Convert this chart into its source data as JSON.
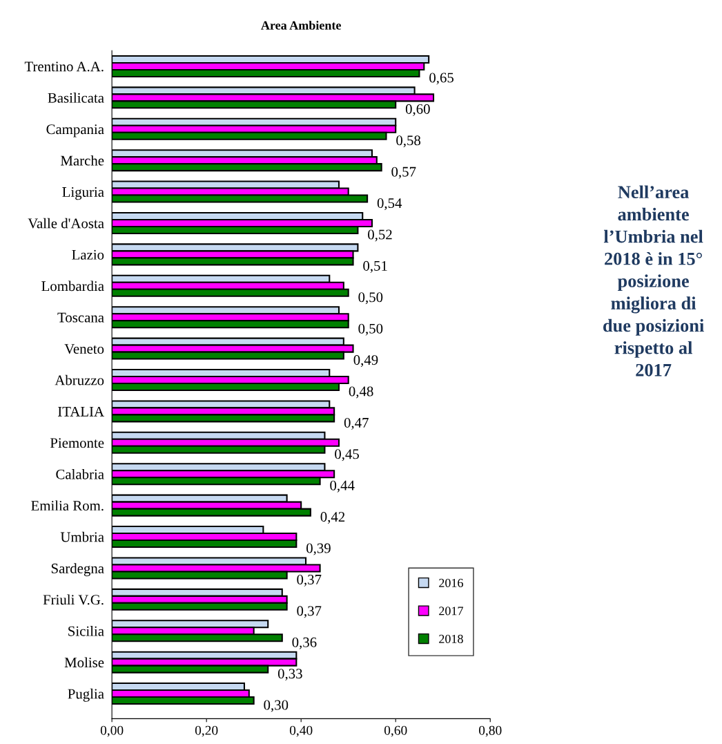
{
  "chart_data": {
    "type": "bar",
    "orientation": "horizontal",
    "title": "Area Ambiente",
    "categories": [
      "Trentino A.A.",
      "Basilicata",
      "Campania",
      "Marche",
      "Liguria",
      "Valle d'Aosta",
      "Lazio",
      "Lombardia",
      "Toscana",
      "Veneto",
      "Abruzzo",
      "ITALIA",
      "Piemonte",
      "Calabria",
      "Emilia Rom.",
      "Umbria",
      "Sardegna",
      "Friuli V.G.",
      "Sicilia",
      "Molise",
      "Puglia"
    ],
    "series": [
      {
        "name": "2016",
        "color": "#c6d9f1",
        "values": [
          0.67,
          0.64,
          0.6,
          0.55,
          0.48,
          0.53,
          0.52,
          0.46,
          0.48,
          0.49,
          0.46,
          0.46,
          0.45,
          0.45,
          0.37,
          0.32,
          0.41,
          0.36,
          0.33,
          0.39,
          0.28
        ]
      },
      {
        "name": "2017",
        "color": "#ff00ff",
        "values": [
          0.66,
          0.68,
          0.6,
          0.56,
          0.5,
          0.55,
          0.51,
          0.49,
          0.5,
          0.51,
          0.5,
          0.47,
          0.48,
          0.47,
          0.4,
          0.39,
          0.44,
          0.37,
          0.3,
          0.39,
          0.29
        ]
      },
      {
        "name": "2018",
        "color": "#008000",
        "values": [
          0.65,
          0.6,
          0.58,
          0.57,
          0.54,
          0.52,
          0.51,
          0.5,
          0.5,
          0.49,
          0.48,
          0.47,
          0.45,
          0.44,
          0.42,
          0.39,
          0.37,
          0.37,
          0.36,
          0.33,
          0.3
        ],
        "value_labels": [
          "0,65",
          "0,60",
          "0,58",
          "0,57",
          "0,54",
          "0,52",
          "0,51",
          "0,50",
          "0,50",
          "0,49",
          "0,48",
          "0,47",
          "0,45",
          "0,44",
          "0,42",
          "0,39",
          "0,37",
          "0,37",
          "0,36",
          "0,33",
          "0,30"
        ]
      }
    ],
    "xlim": [
      0,
      0.8
    ],
    "xticks": [
      {
        "value": 0,
        "label": "0,00"
      },
      {
        "value": 0.2,
        "label": "0,20"
      },
      {
        "value": 0.4,
        "label": "0,40"
      },
      {
        "value": 0.6,
        "label": "0,60"
      },
      {
        "value": 0.8,
        "label": "0,80"
      }
    ],
    "grid": false,
    "legend": "bottom right",
    "annotations": [
      "Nell’area\nambiente\nl’Umbria nel\n2018 è in 15°\nposizione\nmigliora di\ndue posizioni\nrispetto al\n2017"
    ]
  }
}
